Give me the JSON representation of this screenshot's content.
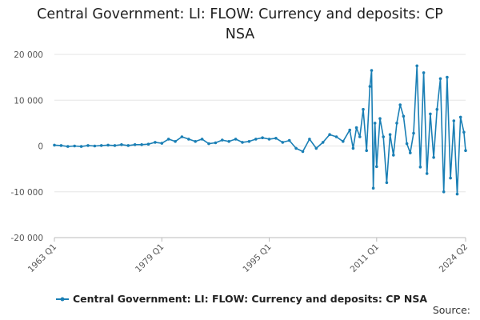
{
  "chart_data": {
    "type": "line",
    "title": "Central Government: LI: FLOW: Currency and deposits: CP NSA",
    "xlabel": "",
    "ylabel": "",
    "x_tick_labels": [
      "1963 Q1",
      "1979 Q1",
      "1995 Q1",
      "2011 Q1",
      "2024 Q2"
    ],
    "x_range": [
      "1963 Q1",
      "2024 Q2"
    ],
    "y_tick_labels": [
      "20 000",
      "10 000",
      "0",
      "-10 000",
      "-20 000"
    ],
    "ylim": [
      -20000,
      20000
    ],
    "grid": "horizontal",
    "legend_position": "bottom",
    "series": [
      {
        "name": "Central Government: LI: FLOW: Currency and deposits: CP NSA",
        "color": "#1a7fb5",
        "x": [
          "1963 Q1",
          "1964 Q1",
          "1965 Q1",
          "1966 Q1",
          "1967 Q1",
          "1968 Q1",
          "1969 Q1",
          "1970 Q1",
          "1971 Q1",
          "1972 Q1",
          "1973 Q1",
          "1974 Q1",
          "1975 Q1",
          "1976 Q1",
          "1977 Q1",
          "1978 Q1",
          "1979 Q1",
          "1980 Q1",
          "1981 Q1",
          "1982 Q1",
          "1983 Q1",
          "1984 Q1",
          "1985 Q1",
          "1986 Q1",
          "1987 Q1",
          "1988 Q1",
          "1989 Q1",
          "1990 Q1",
          "1991 Q1",
          "1992 Q1",
          "1993 Q1",
          "1994 Q1",
          "1995 Q1",
          "1996 Q1",
          "1997 Q1",
          "1998 Q1",
          "1999 Q1",
          "2000 Q1",
          "2001 Q1",
          "2002 Q1",
          "2003 Q1",
          "2004 Q1",
          "2005 Q1",
          "2006 Q1",
          "2007 Q1",
          "2007 Q3",
          "2008 Q1",
          "2008 Q3",
          "2009 Q1",
          "2009 Q3",
          "2010 Q1",
          "2010 Q2",
          "2010 Q3",
          "2010 Q4",
          "2011 Q1",
          "2011 Q3",
          "2012 Q1",
          "2012 Q3",
          "2013 Q1",
          "2013 Q3",
          "2014 Q1",
          "2014 Q3",
          "2015 Q1",
          "2015 Q3",
          "2016 Q1",
          "2016 Q3",
          "2017 Q1",
          "2017 Q3",
          "2018 Q1",
          "2018 Q3",
          "2019 Q1",
          "2019 Q3",
          "2020 Q1",
          "2020 Q3",
          "2021 Q1",
          "2021 Q3",
          "2022 Q1",
          "2022 Q3",
          "2023 Q1",
          "2023 Q3",
          "2024 Q1",
          "2024 Q2"
        ],
        "values": [
          200,
          100,
          -100,
          0,
          -100,
          100,
          0,
          100,
          200,
          100,
          300,
          100,
          300,
          300,
          400,
          800,
          600,
          1500,
          1000,
          2000,
          1500,
          1000,
          1500,
          500,
          700,
          1300,
          1000,
          1500,
          800,
          1000,
          1500,
          1800,
          1500,
          1700,
          800,
          1200,
          -500,
          -1200,
          1500,
          -500,
          800,
          2500,
          2000,
          1000,
          3500,
          -500,
          4000,
          2000,
          8000,
          -1000,
          13000,
          16500,
          -9200,
          5000,
          -4500,
          6000,
          2000,
          -8000,
          2500,
          -2000,
          5000,
          9000,
          6500,
          500,
          -1500,
          2800,
          17500,
          -4600,
          16000,
          -6000,
          7000,
          -2500,
          8000,
          14700,
          -10000,
          15000,
          -7000,
          5500,
          -10500,
          6300,
          3000,
          -1000
        ]
      }
    ]
  },
  "legend": {
    "label": "Central Government: LI: FLOW: Currency and deposits: CP NSA"
  },
  "source": {
    "label": "Source:"
  }
}
